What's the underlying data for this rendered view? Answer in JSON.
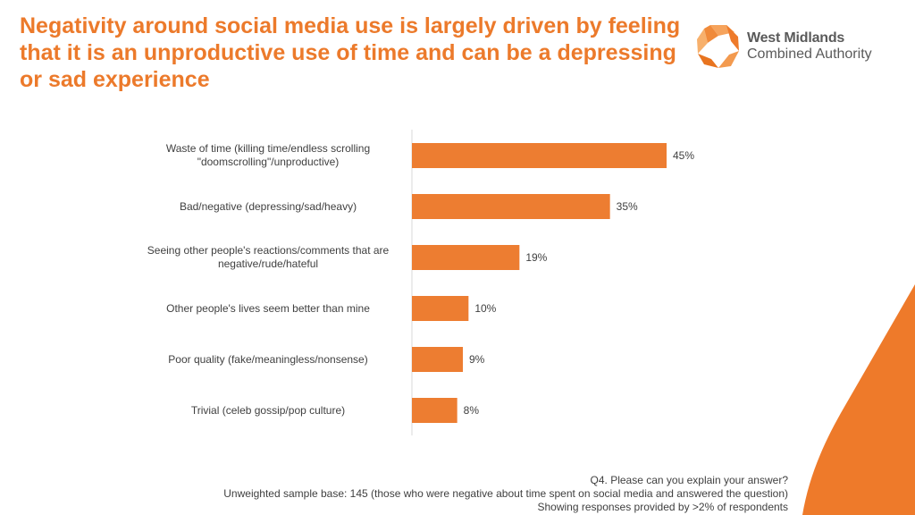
{
  "title": "Negativity around social media use is largely driven by feeling that it is an unproductive use of time and can be a depressing or sad experience",
  "logo": {
    "line1": "West Midlands",
    "line2": "Combined Authority"
  },
  "colors": {
    "accent": "#ec7a2b",
    "bar": "#ed7d31",
    "text": "#404040",
    "axis": "#d9d9d9"
  },
  "chart_data": {
    "type": "bar",
    "orientation": "horizontal",
    "categories": [
      "Waste of time (killing time/endless scrolling \"doomscrolling\"/unproductive)",
      "Bad/negative (depressing/sad/heavy)",
      "Seeing other people's reactions/comments that are negative/rude/hateful",
      "Other people's lives seem better than mine",
      "Poor quality (fake/meaningless/nonsense)",
      "Trivial (celeb gossip/pop culture)"
    ],
    "category_lines": [
      [
        "Waste of time (killing time/endless scrolling",
        "\"doomscrolling\"/unproductive)"
      ],
      [
        "Bad/negative (depressing/sad/heavy)"
      ],
      [
        "Seeing other people's reactions/comments that are",
        "negative/rude/hateful"
      ],
      [
        "Other people's lives seem better than mine"
      ],
      [
        "Poor quality (fake/meaningless/nonsense)"
      ],
      [
        "Trivial (celeb gossip/pop culture)"
      ]
    ],
    "values": [
      45,
      35,
      19,
      10,
      9,
      8
    ],
    "value_labels": [
      "45%",
      "35%",
      "19%",
      "10%",
      "9%",
      "8%"
    ],
    "unit": "%",
    "xlim": [
      0,
      50
    ],
    "title": "",
    "xlabel": "",
    "ylabel": "",
    "grid": false,
    "legend": "none"
  },
  "footnotes": {
    "question": "Q4. Please can you explain your answer?",
    "base": "Unweighted sample base: 145 (those who were negative about time spent on social media and answered the question)",
    "threshold": "Showing responses provided by >2% of respondents"
  }
}
